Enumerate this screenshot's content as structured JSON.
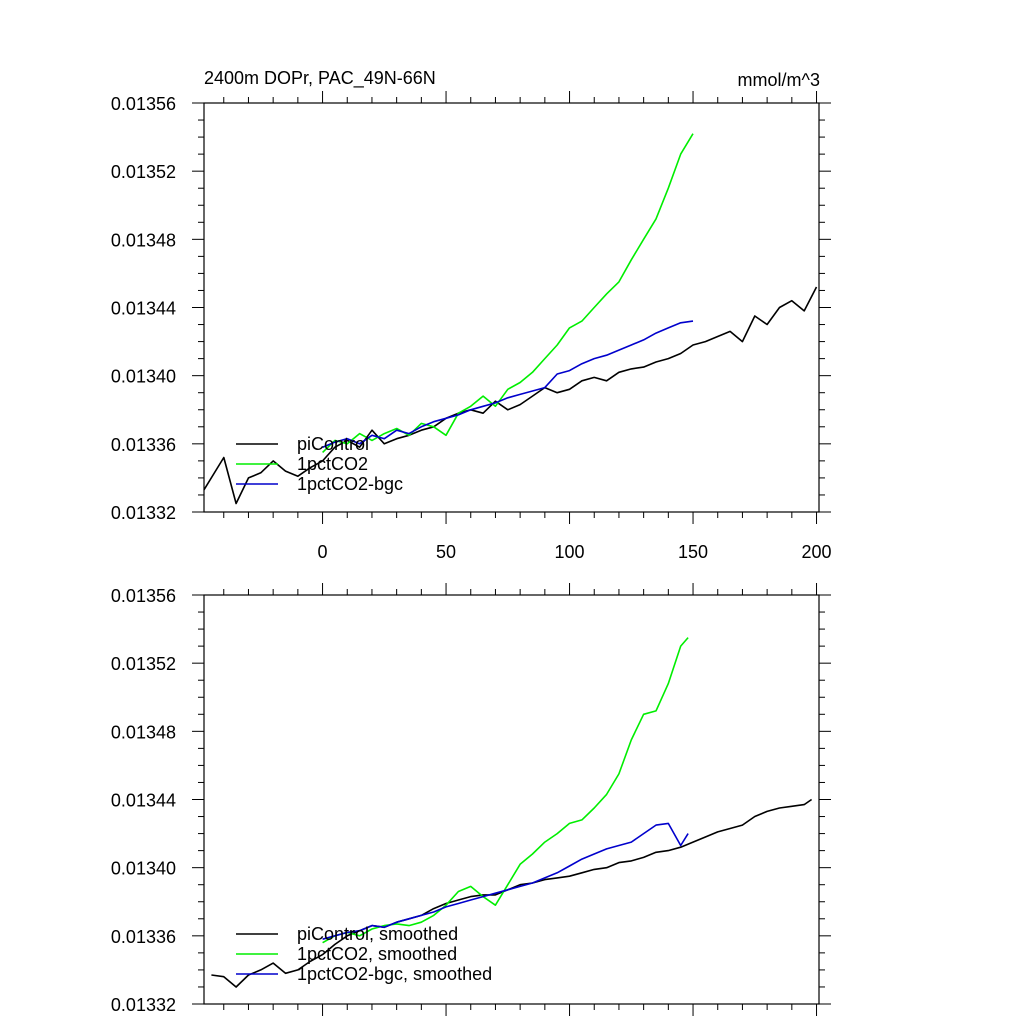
{
  "chart_data": [
    {
      "type": "line",
      "title": "2400m DOPr, PAC_49N-66N",
      "units": "mmol/m^3",
      "xlim": [
        -48,
        201
      ],
      "ylim": [
        0.01332,
        0.01356
      ],
      "xticks": [
        0,
        50,
        100,
        150,
        200
      ],
      "xtick_labels": [
        "0",
        "50",
        "100",
        "150",
        "200"
      ],
      "yticks": [
        0.01332,
        0.01336,
        0.0134,
        0.01344,
        0.01348,
        0.01352,
        0.01356
      ],
      "ytick_labels": [
        "0.01332",
        "0.01336",
        "0.01340",
        "0.01344",
        "0.01348",
        "0.01352",
        "0.01356"
      ],
      "legend_position": "bottom-left",
      "series": [
        {
          "name": "piControl",
          "color": "#000000",
          "x": [
            -48,
            -40,
            -35,
            -30,
            -25,
            -20,
            -15,
            -10,
            -5,
            0,
            5,
            10,
            15,
            20,
            25,
            30,
            35,
            40,
            45,
            50,
            55,
            60,
            65,
            70,
            75,
            80,
            85,
            90,
            95,
            100,
            105,
            110,
            115,
            120,
            125,
            130,
            135,
            140,
            145,
            150,
            155,
            160,
            165,
            170,
            175,
            180,
            185,
            190,
            195,
            200
          ],
          "y": [
            0.013333,
            0.013352,
            0.013325,
            0.01334,
            0.013343,
            0.01335,
            0.013344,
            0.013341,
            0.013346,
            0.01335,
            0.013358,
            0.013362,
            0.013358,
            0.013368,
            0.01336,
            0.013363,
            0.013365,
            0.013368,
            0.01337,
            0.013375,
            0.013378,
            0.01338,
            0.013378,
            0.013385,
            0.01338,
            0.013383,
            0.013388,
            0.013393,
            0.01339,
            0.013392,
            0.013397,
            0.013399,
            0.013397,
            0.013402,
            0.013404,
            0.013405,
            0.013408,
            0.01341,
            0.013413,
            0.013418,
            0.01342,
            0.013423,
            0.013426,
            0.01342,
            0.013435,
            0.01343,
            0.01344,
            0.013444,
            0.013438,
            0.013452
          ]
        },
        {
          "name": "1pctCO2",
          "color": "#00ee00",
          "x": [
            0,
            5,
            10,
            15,
            20,
            25,
            30,
            35,
            40,
            45,
            50,
            55,
            60,
            65,
            70,
            75,
            80,
            85,
            90,
            95,
            100,
            105,
            110,
            115,
            120,
            125,
            130,
            135,
            140,
            145,
            150
          ],
          "y": [
            0.013355,
            0.013362,
            0.01336,
            0.013366,
            0.013362,
            0.013366,
            0.013369,
            0.013365,
            0.013372,
            0.01337,
            0.013365,
            0.013378,
            0.013382,
            0.013388,
            0.013382,
            0.013392,
            0.013396,
            0.013402,
            0.01341,
            0.013418,
            0.013428,
            0.013432,
            0.01344,
            0.013448,
            0.013455,
            0.013468,
            0.01348,
            0.013492,
            0.01351,
            0.01353,
            0.013542
          ]
        },
        {
          "name": "1pctCO2-bgc",
          "color": "#0000cc",
          "x": [
            0,
            5,
            10,
            15,
            20,
            25,
            30,
            35,
            40,
            45,
            50,
            55,
            60,
            65,
            70,
            75,
            80,
            85,
            90,
            95,
            100,
            105,
            110,
            115,
            120,
            125,
            130,
            135,
            140,
            145,
            150
          ],
          "y": [
            0.013358,
            0.013361,
            0.013363,
            0.01336,
            0.013365,
            0.013363,
            0.013368,
            0.013366,
            0.01337,
            0.013373,
            0.013375,
            0.013377,
            0.01338,
            0.013382,
            0.013384,
            0.013387,
            0.013389,
            0.013391,
            0.013393,
            0.013401,
            0.013403,
            0.013407,
            0.01341,
            0.013412,
            0.013415,
            0.013418,
            0.013421,
            0.013425,
            0.013428,
            0.013431,
            0.013432
          ]
        }
      ]
    },
    {
      "type": "line",
      "title": "",
      "xlim": [
        -48,
        201
      ],
      "ylim": [
        0.01332,
        0.01356
      ],
      "xticks": [
        0,
        50,
        100,
        150,
        200
      ],
      "yticks": [
        0.01332,
        0.01336,
        0.0134,
        0.01344,
        0.01348,
        0.01352,
        0.01356
      ],
      "ytick_labels": [
        "0.01332",
        "0.01336",
        "0.01340",
        "0.01344",
        "0.01348",
        "0.01352",
        "0.01356"
      ],
      "legend_position": "bottom-left",
      "series": [
        {
          "name": "piControl, smoothed",
          "color": "#000000",
          "x": [
            -45,
            -40,
            -35,
            -30,
            -25,
            -20,
            -15,
            -10,
            -5,
            0,
            5,
            10,
            15,
            20,
            25,
            30,
            35,
            40,
            45,
            50,
            55,
            60,
            65,
            70,
            75,
            80,
            85,
            90,
            95,
            100,
            105,
            110,
            115,
            120,
            125,
            130,
            135,
            140,
            145,
            150,
            155,
            160,
            165,
            170,
            175,
            180,
            185,
            190,
            195,
            198
          ],
          "y": [
            0.013337,
            0.013336,
            0.01333,
            0.013337,
            0.01334,
            0.013344,
            0.013338,
            0.01334,
            0.013345,
            0.013349,
            0.013355,
            0.01336,
            0.013363,
            0.013366,
            0.013365,
            0.013368,
            0.01337,
            0.013372,
            0.013376,
            0.013379,
            0.013381,
            0.013383,
            0.013384,
            0.013384,
            0.013387,
            0.01339,
            0.013391,
            0.013393,
            0.013394,
            0.013395,
            0.013397,
            0.013399,
            0.0134,
            0.013403,
            0.013404,
            0.013406,
            0.013409,
            0.01341,
            0.013412,
            0.013415,
            0.013418,
            0.013421,
            0.013423,
            0.013425,
            0.01343,
            0.013433,
            0.013435,
            0.013436,
            0.013437,
            0.01344
          ]
        },
        {
          "name": "1pctCO2, smoothed",
          "color": "#00ee00",
          "x": [
            0,
            5,
            10,
            15,
            20,
            25,
            30,
            35,
            40,
            45,
            50,
            55,
            60,
            65,
            70,
            75,
            80,
            85,
            90,
            95,
            100,
            105,
            110,
            115,
            120,
            125,
            130,
            135,
            140,
            145,
            148
          ],
          "y": [
            0.013356,
            0.01336,
            0.013362,
            0.01336,
            0.013364,
            0.013366,
            0.013367,
            0.013366,
            0.013368,
            0.013372,
            0.013378,
            0.013386,
            0.013389,
            0.013383,
            0.013378,
            0.01339,
            0.013402,
            0.013408,
            0.013415,
            0.01342,
            0.013426,
            0.013428,
            0.013435,
            0.013443,
            0.013455,
            0.013475,
            0.01349,
            0.013492,
            0.013508,
            0.01353,
            0.013535
          ]
        },
        {
          "name": "1pctCO2-bgc, smoothed",
          "color": "#0000cc",
          "x": [
            0,
            5,
            10,
            15,
            20,
            25,
            30,
            35,
            40,
            45,
            50,
            55,
            60,
            65,
            70,
            75,
            80,
            85,
            90,
            95,
            100,
            105,
            110,
            115,
            120,
            125,
            130,
            135,
            140,
            145,
            148
          ],
          "y": [
            0.013358,
            0.01336,
            0.013362,
            0.013363,
            0.013366,
            0.013365,
            0.013368,
            0.01337,
            0.013372,
            0.013374,
            0.013377,
            0.013379,
            0.013381,
            0.013383,
            0.013385,
            0.013387,
            0.013389,
            0.013391,
            0.013394,
            0.013397,
            0.013401,
            0.013405,
            0.013408,
            0.013411,
            0.013413,
            0.013415,
            0.01342,
            0.013425,
            0.013426,
            0.013413,
            0.01342
          ]
        }
      ]
    }
  ]
}
